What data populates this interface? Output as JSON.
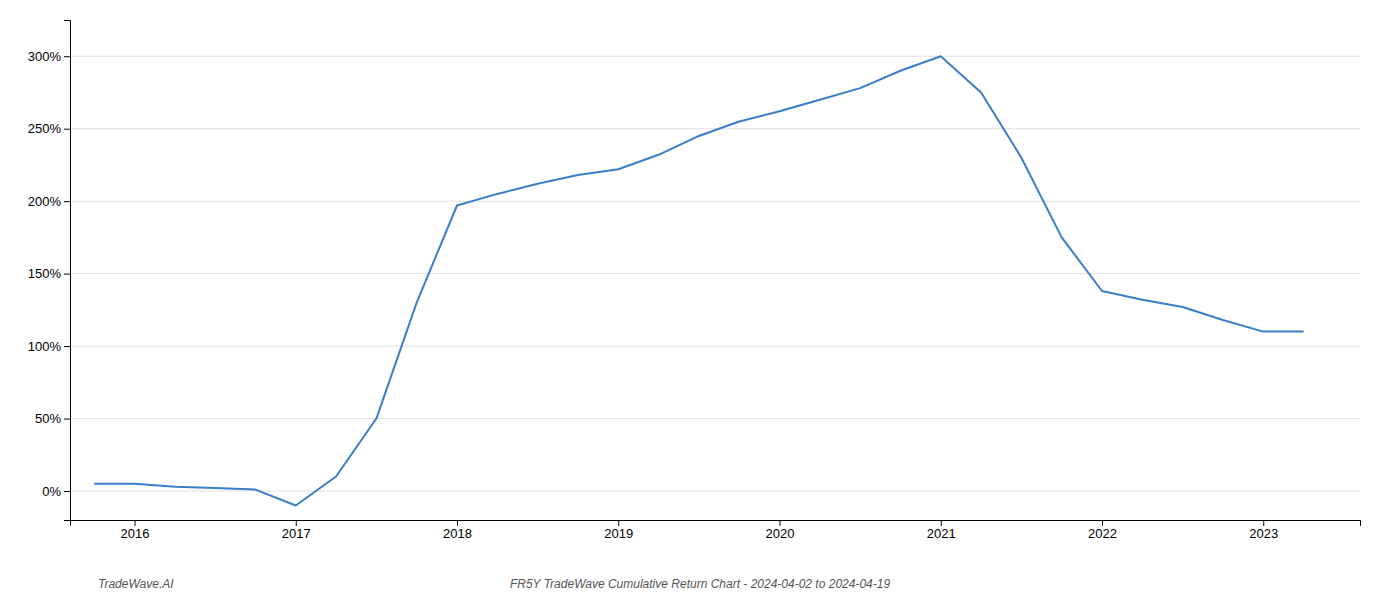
{
  "chart_data": {
    "type": "line",
    "title": "FR5Y TradeWave Cumulative Return Chart - 2024-04-02 to 2024-04-19",
    "annotations": [
      "TradeWave.AI"
    ],
    "x": [
      2015.75,
      2016.0,
      2016.25,
      2016.5,
      2016.75,
      2017.0,
      2017.25,
      2017.5,
      2017.75,
      2018.0,
      2018.25,
      2018.5,
      2018.75,
      2019.0,
      2019.25,
      2019.5,
      2019.75,
      2020.0,
      2020.25,
      2020.5,
      2020.75,
      2021.0,
      2021.25,
      2021.5,
      2021.75,
      2022.0,
      2022.25,
      2022.5,
      2022.75,
      2023.0,
      2023.25
    ],
    "values": [
      5,
      5,
      3,
      2,
      1,
      -10,
      10,
      50,
      130,
      197,
      205,
      212,
      218,
      222,
      232,
      245,
      255,
      262,
      270,
      278,
      290,
      300,
      275,
      230,
      175,
      138,
      132,
      127,
      118,
      110,
      110
    ],
    "color": "#3a7dc9",
    "xlim": [
      2015.6,
      2023.6
    ],
    "xticks": [
      2016,
      2017,
      2018,
      2019,
      2020,
      2021,
      2022,
      2023
    ],
    "ylim": [
      -20,
      325
    ],
    "yticks": [
      {
        "value": 0,
        "label": "0%"
      },
      {
        "value": 50,
        "label": "50%"
      },
      {
        "value": 100,
        "label": "100%"
      },
      {
        "value": 150,
        "label": "150%"
      },
      {
        "value": 200,
        "label": "200%"
      },
      {
        "value": 250,
        "label": "250%"
      },
      {
        "value": 300,
        "label": "300%"
      }
    ],
    "grid": "y"
  }
}
